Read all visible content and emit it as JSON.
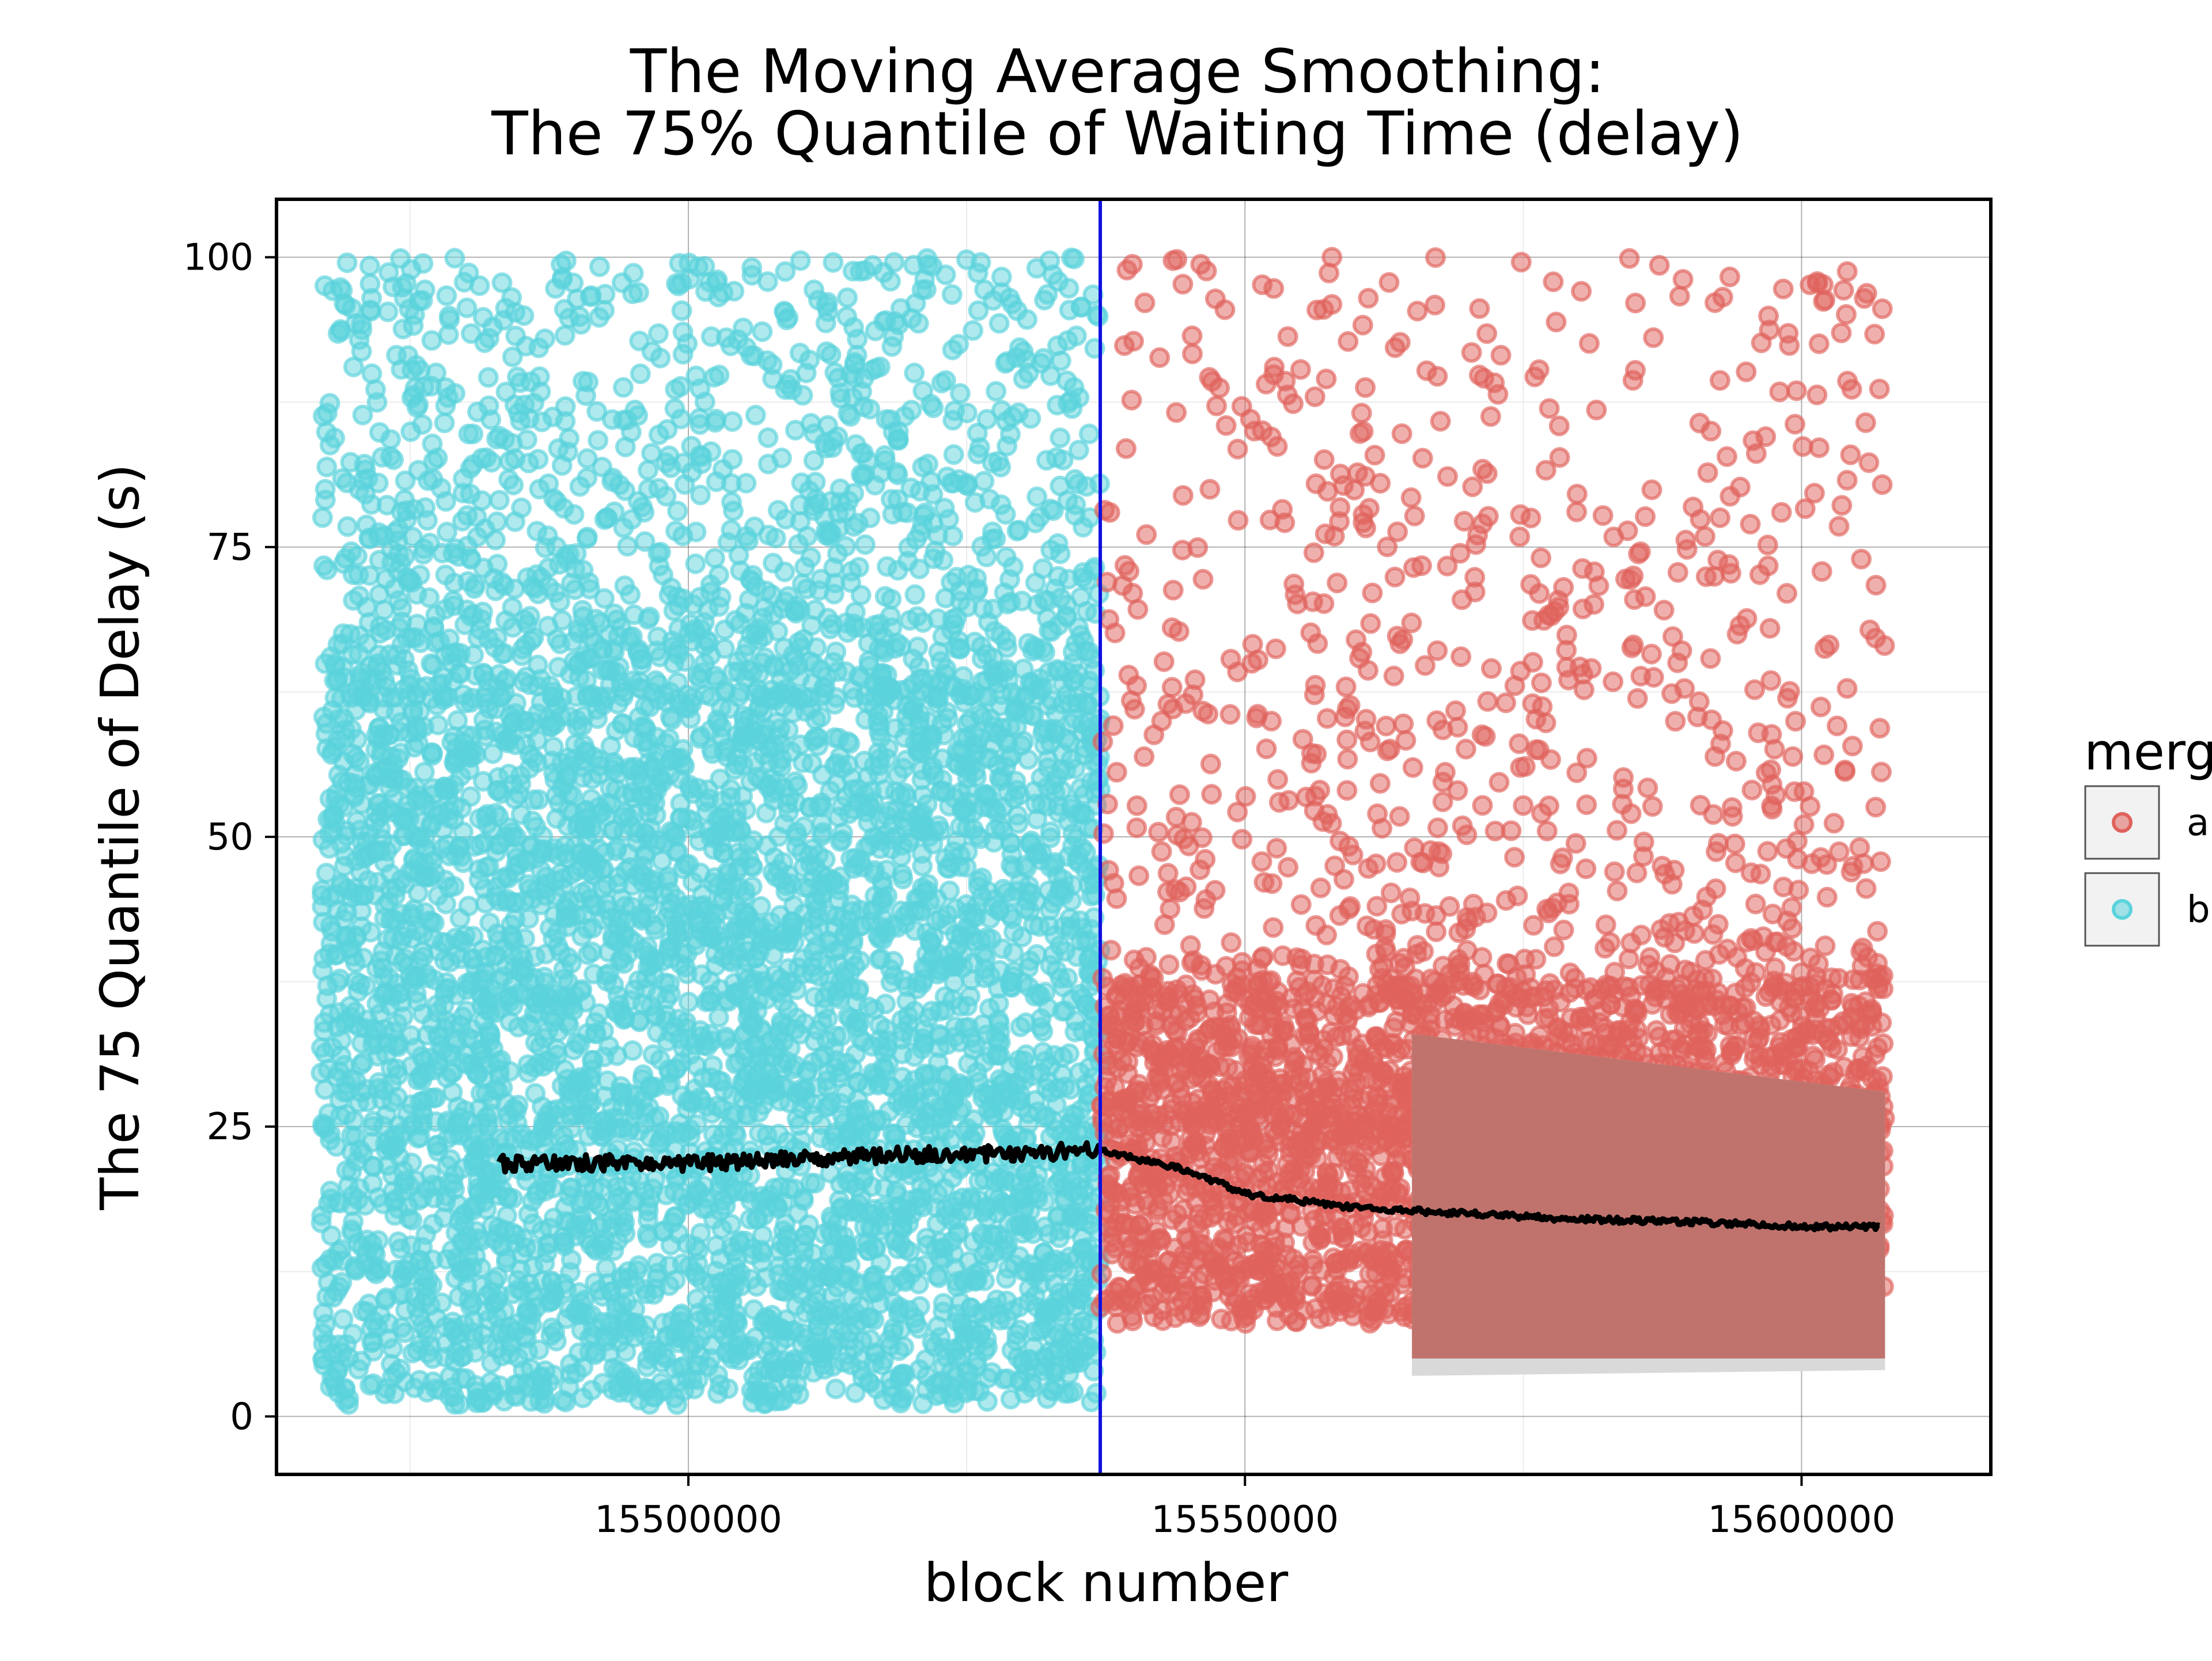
{
  "chart_data": {
    "type": "scatter",
    "title_line1": "The Moving Average Smoothing:",
    "title_line2": "The 75% Quantile of Waiting Time (delay)",
    "xlabel": "block number",
    "ylabel": "The 75 Quantile of Delay (s)",
    "xlim": [
      15463000,
      15617000
    ],
    "ylim": [
      -5,
      105
    ],
    "x_ticks": [
      15500000,
      15550000,
      15600000
    ],
    "y_ticks": [
      0,
      25,
      50,
      75,
      100
    ],
    "grid": true,
    "merge_block": 15537000,
    "legend": {
      "title": "merg",
      "placement": "right",
      "entries": [
        "a",
        "b"
      ]
    },
    "series": [
      {
        "name": "b",
        "color": "#5bd3dc",
        "x_range": [
          15467000,
          15537000
        ],
        "dense_y_range": [
          1,
          62
        ],
        "sparse_y_range": [
          62,
          100
        ]
      },
      {
        "name": "a",
        "color": "#e0625c",
        "x_range": [
          15537000,
          15607500
        ],
        "dense_y_range": [
          8,
          37
        ],
        "sparse_y_range": [
          37,
          100
        ]
      }
    ],
    "ribbon": {
      "color": "#c0736d",
      "x": [
        15565000,
        15607500
      ],
      "upper": [
        33,
        28
      ],
      "lower": [
        5,
        5
      ]
    },
    "moving_average": {
      "color": "#000000",
      "x": [
        15483000,
        15490000,
        15500000,
        15510000,
        15520000,
        15530000,
        15535000,
        15537000,
        15540000,
        15545000,
        15550000,
        15560000,
        15570000,
        15580000,
        15590000,
        15600000,
        15607000
      ],
      "y": [
        21.8,
        21.9,
        21.8,
        22.2,
        22.6,
        22.7,
        22.9,
        22.9,
        22.3,
        21.2,
        19.2,
        18.0,
        17.5,
        17.0,
        16.8,
        16.4,
        16.3
      ]
    }
  }
}
